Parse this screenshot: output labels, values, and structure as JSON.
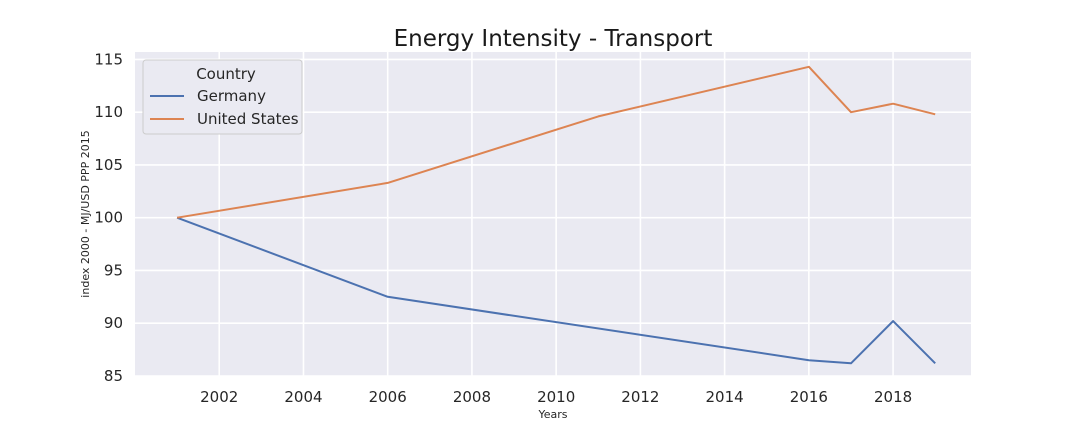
{
  "chart_data": {
    "type": "line",
    "title": "Energy Intensity - Transport",
    "xlabel": "Years",
    "ylabel": "index 2000 - MJ/USD PPP 2015",
    "xlim": [
      2000.0,
      2019.85
    ],
    "ylim": [
      85,
      115.7
    ],
    "xticks": [
      2002,
      2004,
      2006,
      2008,
      2010,
      2012,
      2014,
      2016,
      2018
    ],
    "yticks": [
      85,
      90,
      95,
      100,
      105,
      110,
      115
    ],
    "grid": true,
    "legend": {
      "title": "Country",
      "placement": "top-left"
    },
    "series": [
      {
        "name": "Germany",
        "color": "#4c72b0",
        "x": [
          2001,
          2006,
          2016,
          2017,
          2018,
          2019
        ],
        "y": [
          100,
          92.5,
          86.5,
          86.2,
          90.2,
          86.2
        ]
      },
      {
        "name": "United States",
        "color": "#dd8452",
        "x": [
          2001,
          2006,
          2011,
          2016,
          2017,
          2018,
          2019
        ],
        "y": [
          100,
          103.3,
          109.6,
          114.3,
          110.0,
          110.8,
          109.8
        ]
      }
    ]
  }
}
